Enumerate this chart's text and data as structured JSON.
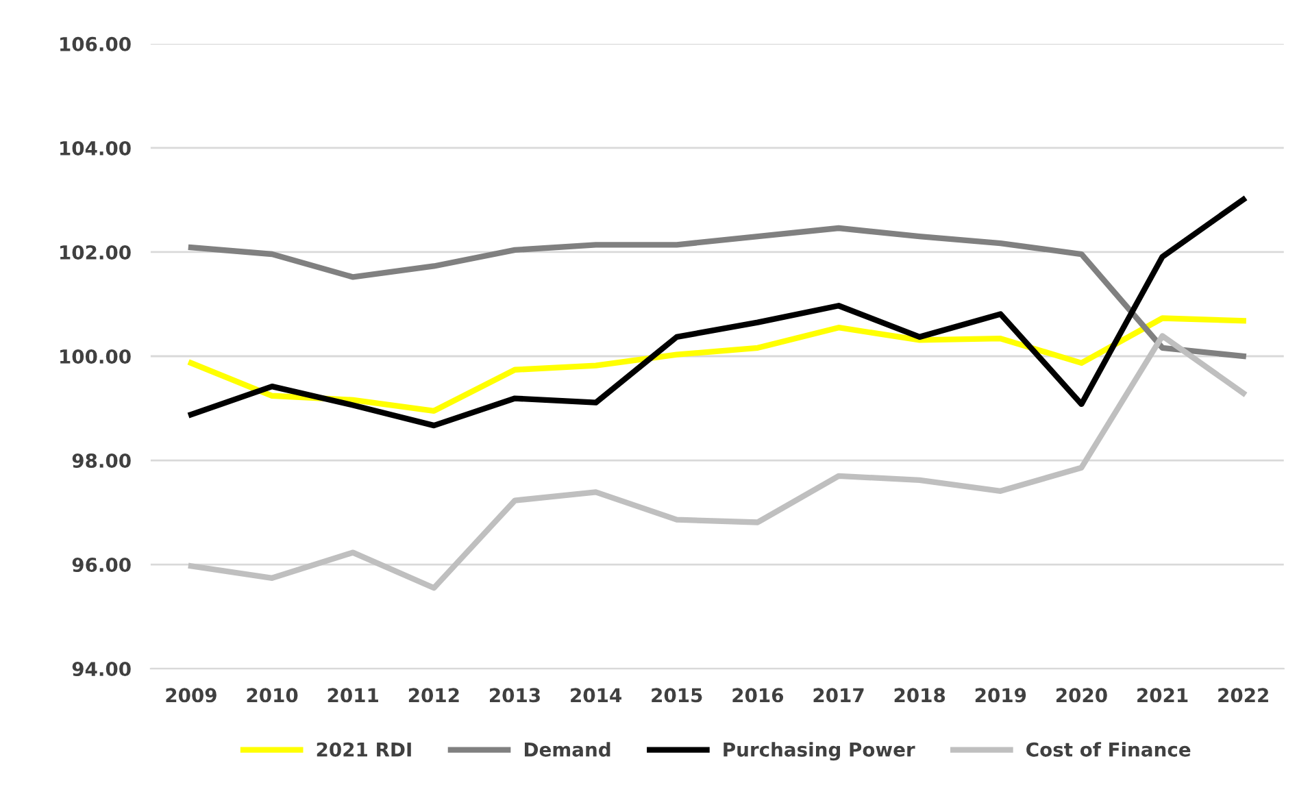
{
  "chart_data": {
    "type": "line",
    "categories": [
      "2009",
      "2010",
      "2011",
      "2012",
      "2013",
      "2014",
      "2015",
      "2016",
      "2017",
      "2018",
      "2019",
      "2020",
      "2021",
      "2022"
    ],
    "series": [
      {
        "name": "2021 RDI",
        "color": "#ffff00",
        "values": [
          99.87,
          99.24,
          99.16,
          98.95,
          99.74,
          99.82,
          100.03,
          100.16,
          100.55,
          100.31,
          100.34,
          99.87,
          100.73,
          100.68
        ]
      },
      {
        "name": "Demand",
        "color": "#808080",
        "values": [
          102.09,
          101.96,
          101.52,
          101.73,
          102.04,
          102.14,
          102.14,
          102.3,
          102.46,
          102.3,
          102.17,
          101.96,
          100.16,
          100.0
        ]
      },
      {
        "name": "Purchasing Power",
        "color": "#000000",
        "values": [
          98.88,
          99.42,
          99.06,
          98.67,
          99.19,
          99.11,
          100.37,
          100.65,
          100.97,
          100.37,
          100.81,
          99.08,
          101.91,
          103.01
        ]
      },
      {
        "name": "Cost of Finance",
        "color": "#bfbfbf",
        "values": [
          95.97,
          95.74,
          96.23,
          95.55,
          97.23,
          97.39,
          96.86,
          96.81,
          97.7,
          97.62,
          97.41,
          97.86,
          100.39,
          99.29
        ]
      }
    ],
    "ylim": [
      94,
      106
    ],
    "yticks": [
      {
        "value": 94,
        "label": "94.00"
      },
      {
        "value": 96,
        "label": "96.00"
      },
      {
        "value": 98,
        "label": "98.00"
      },
      {
        "value": 100,
        "label": "100.00"
      },
      {
        "value": 102,
        "label": "102.00"
      },
      {
        "value": 104,
        "label": "104.00"
      },
      {
        "value": 106,
        "label": "106.00"
      }
    ],
    "grid": "y",
    "legend": "bottom",
    "marker": "none",
    "line_style": "solid"
  }
}
